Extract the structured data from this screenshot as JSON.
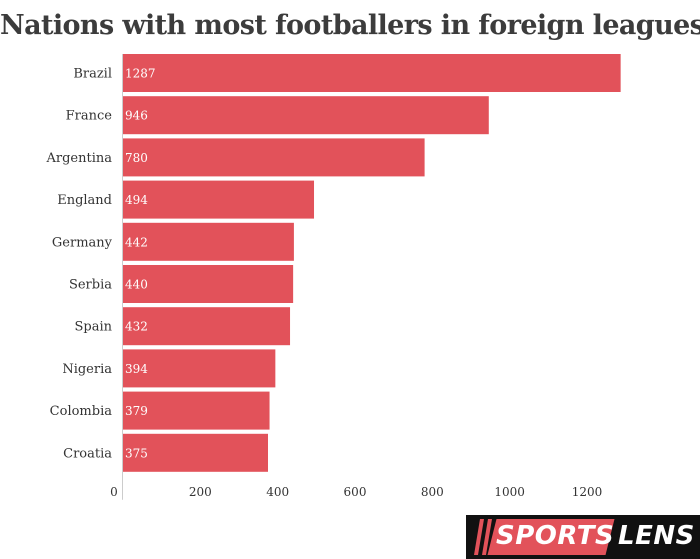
{
  "chart_data": {
    "type": "bar",
    "orientation": "horizontal",
    "title": "Nations with most footballers in foreign leagues",
    "categories": [
      "Brazil",
      "France",
      "Argentina",
      "England",
      "Germany",
      "Serbia",
      "Spain",
      "Nigeria",
      "Colombia",
      "Croatia"
    ],
    "values": [
      1287,
      946,
      780,
      494,
      442,
      440,
      432,
      394,
      379,
      375
    ],
    "xlim": [
      0,
      1350
    ],
    "xticks": [
      0,
      200,
      400,
      600,
      800,
      1000,
      1200
    ],
    "xlabel": "",
    "ylabel": "",
    "grid": false,
    "legend": "none",
    "bar_color": "#e2525a"
  },
  "logo": {
    "part1": "SPORTS",
    "part2": "LENS",
    "accent": "#e2525a",
    "background": "#111111"
  }
}
